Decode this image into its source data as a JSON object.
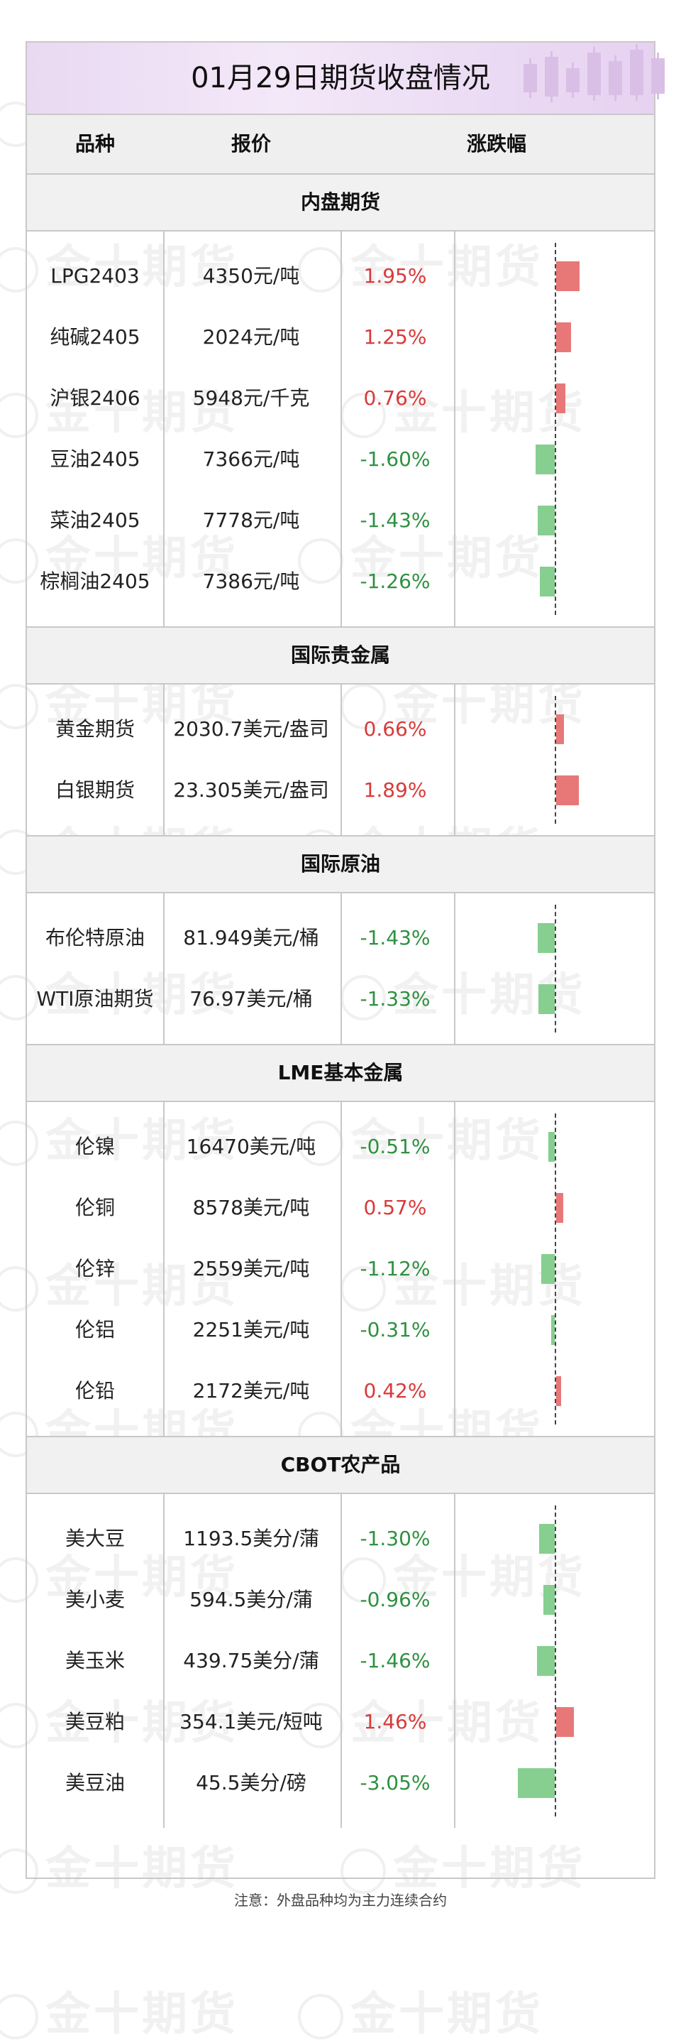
{
  "title": "01月29日期货收盘情况",
  "watermark": "金十期货",
  "headers": {
    "name": "品种",
    "price": "报价",
    "change": "涨跌幅"
  },
  "sections": [
    {
      "name": "内盘期货",
      "rows": [
        {
          "name": "LPG2403",
          "price": "4350元/吨",
          "change": "1.95%",
          "value": 1.95
        },
        {
          "name": "纯碱2405",
          "price": "2024元/吨",
          "change": "1.25%",
          "value": 1.25
        },
        {
          "name": "沪银2406",
          "price": "5948元/千克",
          "change": "0.76%",
          "value": 0.76
        },
        {
          "name": "豆油2405",
          "price": "7366元/吨",
          "change": "-1.60%",
          "value": -1.6
        },
        {
          "name": "菜油2405",
          "price": "7778元/吨",
          "change": "-1.43%",
          "value": -1.43
        },
        {
          "name": "棕榈油2405",
          "price": "7386元/吨",
          "change": "-1.26%",
          "value": -1.26
        }
      ]
    },
    {
      "name": "国际贵金属",
      "rows": [
        {
          "name": "黄金期货",
          "price": "2030.7美元/盎司",
          "change": "0.66%",
          "value": 0.66
        },
        {
          "name": "白银期货",
          "price": "23.305美元/盎司",
          "change": "1.89%",
          "value": 1.89
        }
      ]
    },
    {
      "name": "国际原油",
      "rows": [
        {
          "name": "布伦特原油",
          "price": "81.949美元/桶",
          "change": "-1.43%",
          "value": -1.43
        },
        {
          "name": "WTI原油期货",
          "price": "76.97美元/桶",
          "change": "-1.33%",
          "value": -1.33
        }
      ]
    },
    {
      "name": "LME基本金属",
      "rows": [
        {
          "name": "伦镍",
          "price": "16470美元/吨",
          "change": "-0.51%",
          "value": -0.51
        },
        {
          "name": "伦铜",
          "price": "8578美元/吨",
          "change": "0.57%",
          "value": 0.57
        },
        {
          "name": "伦锌",
          "price": "2559美元/吨",
          "change": "-1.12%",
          "value": -1.12
        },
        {
          "name": "伦铝",
          "price": "2251美元/吨",
          "change": "-0.31%",
          "value": -0.31
        },
        {
          "name": "伦铅",
          "price": "2172美元/吨",
          "change": "0.42%",
          "value": 0.42
        }
      ]
    },
    {
      "name": "CBOT农产品",
      "rows": [
        {
          "name": "美大豆",
          "price": "1193.5美分/蒲",
          "change": "-1.30%",
          "value": -1.3
        },
        {
          "name": "美小麦",
          "price": "594.5美分/蒲",
          "change": "-0.96%",
          "value": -0.96
        },
        {
          "name": "美玉米",
          "price": "439.75美分/蒲",
          "change": "-1.46%",
          "value": -1.46
        },
        {
          "name": "美豆粕",
          "price": "354.1美元/短吨",
          "change": "1.46%",
          "value": 1.46
        },
        {
          "name": "美豆油",
          "price": "45.5美分/磅",
          "change": "-3.05%",
          "value": -3.05
        }
      ]
    }
  ],
  "note": "注意：外盘品种均为主力连续合约",
  "colors": {
    "up": "#d83a3a",
    "down": "#2e9140",
    "bar_up": "#e87878",
    "bar_down": "#86cf90"
  }
}
